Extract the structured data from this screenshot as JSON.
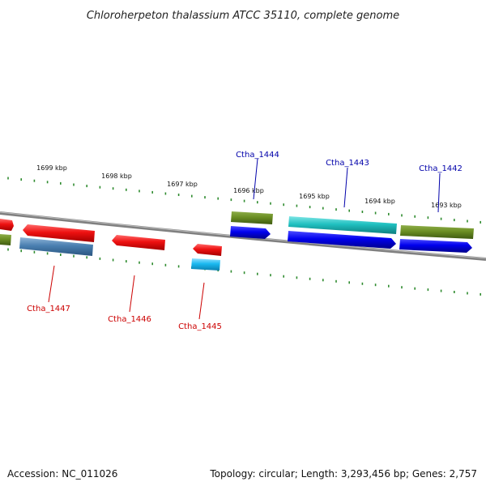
{
  "title": "Chloroherpeton thalassium ATCC 35110, complete genome",
  "footer": {
    "accession": "Accession: NC_011026",
    "topology": "Topology: circular; Length: 3,293,456 bp; Genes: 2,757"
  },
  "scale_labels": [
    "1699 kbp",
    "1698 kbp",
    "1697 kbp",
    "1696 kbp",
    "1695 kbp",
    "1694 kbp",
    "1693 kbp"
  ],
  "genes": [
    {
      "name": "Ctha_1444",
      "color": "#0000aa",
      "strand": "top"
    },
    {
      "name": "Ctha_1443",
      "color": "#0000aa",
      "strand": "top"
    },
    {
      "name": "Ctha_1442",
      "color": "#0000aa",
      "strand": "top"
    },
    {
      "name": "Ctha_1447",
      "color": "#cc0000",
      "strand": "bottom"
    },
    {
      "name": "Ctha_1446",
      "color": "#cc0000",
      "strand": "bottom"
    },
    {
      "name": "Ctha_1445",
      "color": "#cc0000",
      "strand": "bottom"
    }
  ],
  "colors": {
    "backbone": "#808080",
    "tick": "#2e8b2e",
    "red": "#ee1111",
    "olive": "#6b8e23",
    "blue": "#0000ee",
    "cyan": "#20c0c0",
    "steel": "#4a7fb0",
    "lightblue": "#1ab8f0"
  }
}
